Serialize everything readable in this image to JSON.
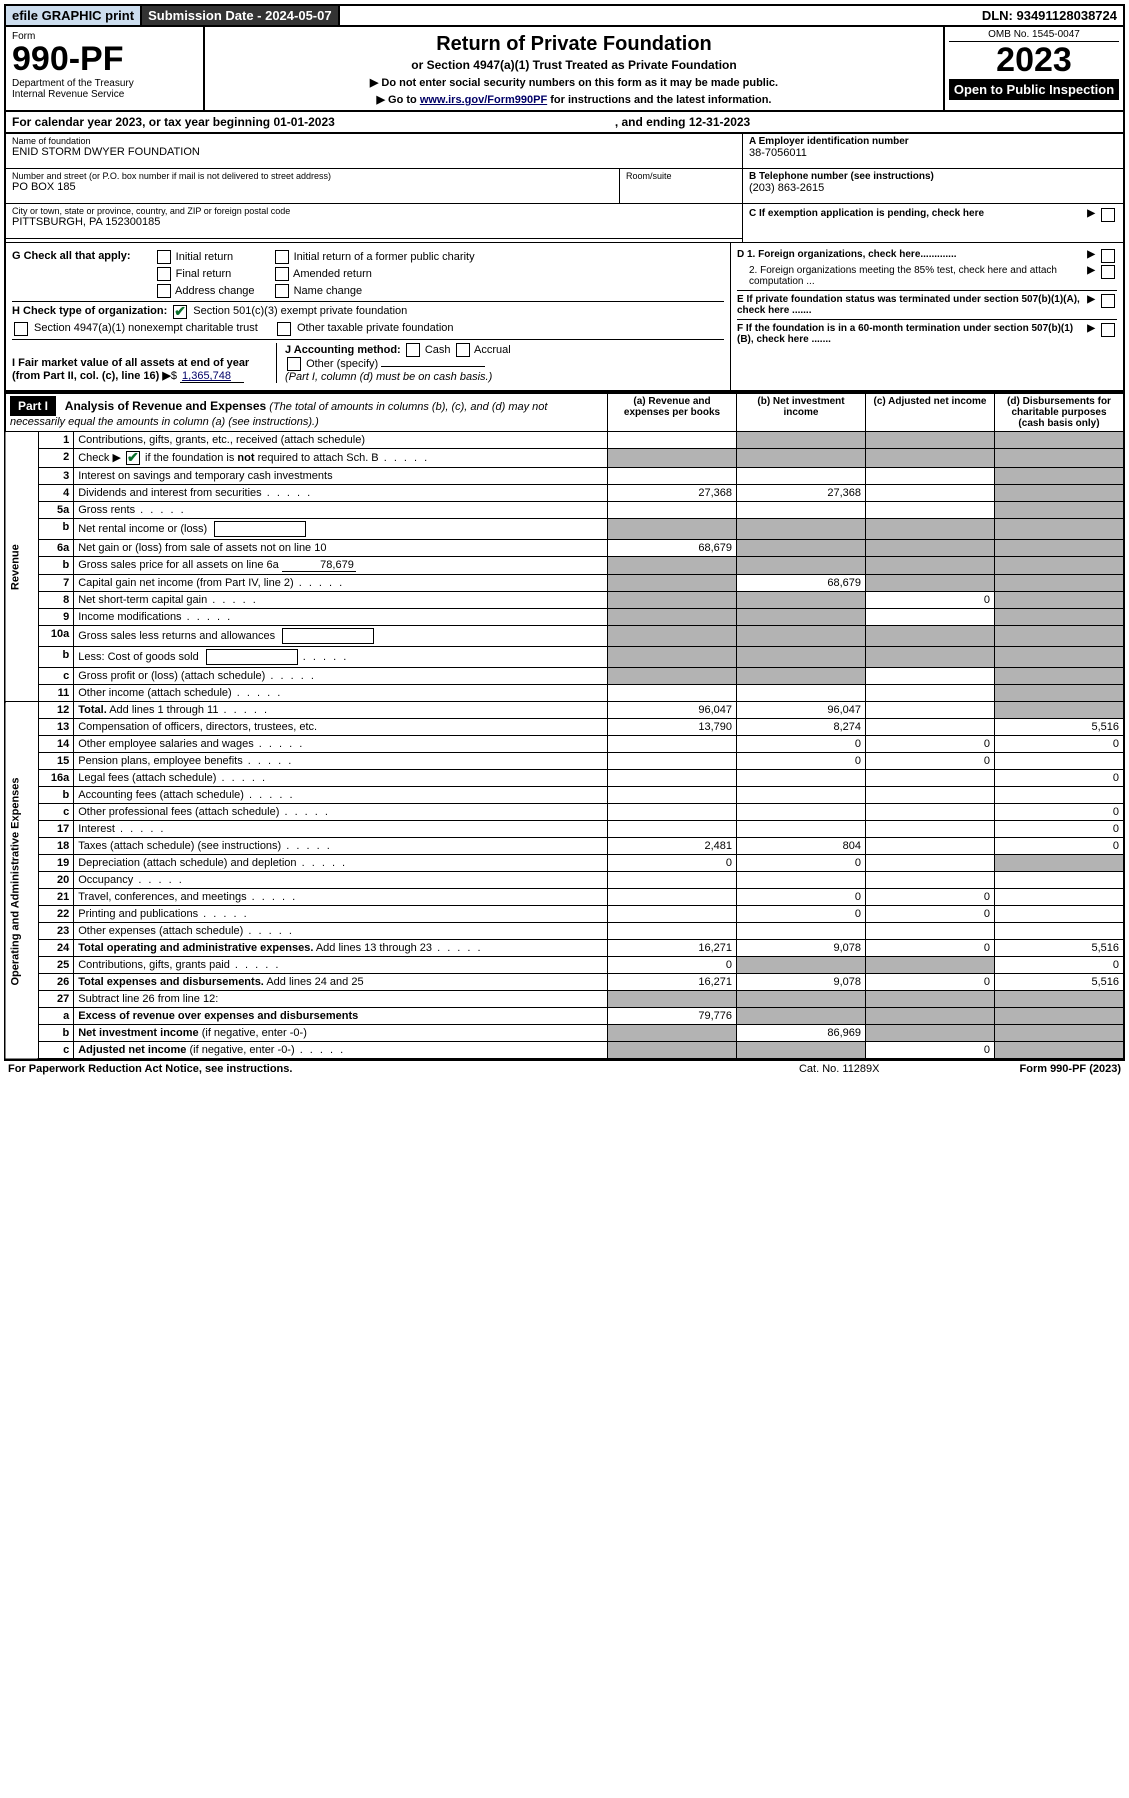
{
  "top_bar": {
    "efile": "efile GRAPHIC print",
    "submission": "Submission Date - 2024-05-07",
    "dln": "DLN: 93491128038724"
  },
  "header": {
    "form_label": "Form",
    "form_no": "990-PF",
    "dept": "Department of the Treasury\nInternal Revenue Service",
    "title": "Return of Private Foundation",
    "subtitle": "or Section 4947(a)(1) Trust Treated as Private Foundation",
    "instr1": "▶ Do not enter social security numbers on this form as it may be made public.",
    "instr2_pre": "▶ Go to ",
    "instr2_link": "www.irs.gov/Form990PF",
    "instr2_post": " for instructions and the latest information.",
    "omb": "OMB No. 1545-0047",
    "year": "2023",
    "open": "Open to Public Inspection"
  },
  "cal_year": {
    "text": "For calendar year 2023, or tax year beginning 01-01-2023",
    "ending": ", and ending 12-31-2023"
  },
  "meta": {
    "name_label": "Name of foundation",
    "name": "ENID STORM DWYER FOUNDATION",
    "addr_label": "Number and street (or P.O. box number if mail is not delivered to street address)",
    "addr": "PO BOX 185",
    "room_label": "Room/suite",
    "city_label": "City or town, state or province, country, and ZIP or foreign postal code",
    "city": "PITTSBURGH, PA  152300185",
    "ein_label": "A Employer identification number",
    "ein": "38-7056011",
    "tel_label": "B Telephone number (see instructions)",
    "tel": "(203) 863-2615",
    "c_label": "C If exemption application is pending, check here",
    "d1": "D 1. Foreign organizations, check here.............",
    "d2": "2. Foreign organizations meeting the 85% test, check here and attach computation ...",
    "e_label": "E  If private foundation status was terminated under section 507(b)(1)(A), check here .......",
    "f_label": "F  If the foundation is in a 60-month termination under section 507(b)(1)(B), check here .......",
    "g_label": "G Check all that apply:",
    "g_opts": [
      "Initial return",
      "Final return",
      "Address change",
      "Initial return of a former public charity",
      "Amended return",
      "Name change"
    ],
    "h_label": "H Check type of organization:",
    "h_opt1": "Section 501(c)(3) exempt private foundation",
    "h_opt2": "Section 4947(a)(1) nonexempt charitable trust",
    "h_opt3": "Other taxable private foundation",
    "i_label": "I Fair market value of all assets at end of year (from Part II, col. (c), line 16)",
    "i_val": "1,365,748",
    "j_label": "J Accounting method:",
    "j_opts": [
      "Cash",
      "Accrual"
    ],
    "j_other": "Other (specify)",
    "j_note": "(Part I, column (d) must be on cash basis.)"
  },
  "part1": {
    "header": "Part I",
    "title": "Analysis of Revenue and Expenses",
    "note": "(The total of amounts in columns (b), (c), and (d) may not necessarily equal the amounts in column (a) (see instructions).)",
    "cols": {
      "a": "(a)   Revenue and expenses per books",
      "b": "(b)   Net investment income",
      "c": "(c)   Adjusted net income",
      "d": "(d)   Disbursements for charitable purposes (cash basis only)"
    },
    "side_revenue": "Revenue",
    "side_expenses": "Operating and Administrative Expenses",
    "rows": [
      {
        "no": "1",
        "desc": "Contributions, gifts, grants, etc., received (attach schedule)",
        "a": "",
        "b": "shade",
        "c": "shade",
        "d": "shade"
      },
      {
        "no": "2",
        "desc": "Check ▶ ☑ if the foundation is <b>not</b> required to attach Sch. B",
        "dots": true,
        "a": "shade",
        "b": "shade",
        "c": "shade",
        "d": "shade",
        "checkbox": true
      },
      {
        "no": "3",
        "desc": "Interest on savings and temporary cash investments",
        "a": "",
        "b": "",
        "c": "",
        "d": "shade"
      },
      {
        "no": "4",
        "desc": "Dividends and interest from securities",
        "dots": true,
        "a": "27,368",
        "b": "27,368",
        "c": "",
        "d": "shade"
      },
      {
        "no": "5a",
        "desc": "Gross rents",
        "dots": true,
        "a": "",
        "b": "",
        "c": "",
        "d": "shade"
      },
      {
        "no": "b",
        "desc": "Net rental income or (loss)",
        "inlinebox": true,
        "a": "shade",
        "b": "shade",
        "c": "shade",
        "d": "shade"
      },
      {
        "no": "6a",
        "desc": "Net gain or (loss) from sale of assets not on line 10",
        "a": "68,679",
        "b": "shade",
        "c": "shade",
        "d": "shade"
      },
      {
        "no": "b",
        "desc": "Gross sales price for all assets on line 6a",
        "inlineval": "78,679",
        "a": "shade",
        "b": "shade",
        "c": "shade",
        "d": "shade"
      },
      {
        "no": "7",
        "desc": "Capital gain net income (from Part IV, line 2)",
        "dots": true,
        "a": "shade",
        "b": "68,679",
        "c": "shade",
        "d": "shade"
      },
      {
        "no": "8",
        "desc": "Net short-term capital gain",
        "dots": true,
        "a": "shade",
        "b": "shade",
        "c": "0",
        "d": "shade"
      },
      {
        "no": "9",
        "desc": "Income modifications",
        "dots": true,
        "a": "shade",
        "b": "shade",
        "c": "",
        "d": "shade"
      },
      {
        "no": "10a",
        "desc": "Gross sales less returns and allowances",
        "inlinebox": true,
        "a": "shade",
        "b": "shade",
        "c": "shade",
        "d": "shade"
      },
      {
        "no": "b",
        "desc": "Less: Cost of goods sold",
        "dots": true,
        "inlinebox": true,
        "a": "shade",
        "b": "shade",
        "c": "shade",
        "d": "shade"
      },
      {
        "no": "c",
        "desc": "Gross profit or (loss) (attach schedule)",
        "dots": true,
        "a": "shade",
        "b": "shade",
        "c": "",
        "d": "shade"
      },
      {
        "no": "11",
        "desc": "Other income (attach schedule)",
        "dots": true,
        "a": "",
        "b": "",
        "c": "",
        "d": "shade"
      },
      {
        "no": "12",
        "desc": "<b>Total.</b> Add lines 1 through 11",
        "dots": true,
        "a": "96,047",
        "b": "96,047",
        "c": "",
        "d": "shade"
      },
      {
        "no": "13",
        "desc": "Compensation of officers, directors, trustees, etc.",
        "a": "13,790",
        "b": "8,274",
        "c": "",
        "d": "5,516"
      },
      {
        "no": "14",
        "desc": "Other employee salaries and wages",
        "dots": true,
        "a": "",
        "b": "0",
        "c": "0",
        "d": "0"
      },
      {
        "no": "15",
        "desc": "Pension plans, employee benefits",
        "dots": true,
        "a": "",
        "b": "0",
        "c": "0",
        "d": ""
      },
      {
        "no": "16a",
        "desc": "Legal fees (attach schedule)",
        "dots": true,
        "a": "",
        "b": "",
        "c": "",
        "d": "0"
      },
      {
        "no": "b",
        "desc": "Accounting fees (attach schedule)",
        "dots": true,
        "a": "",
        "b": "",
        "c": "",
        "d": ""
      },
      {
        "no": "c",
        "desc": "Other professional fees (attach schedule)",
        "dots": true,
        "a": "",
        "b": "",
        "c": "",
        "d": "0"
      },
      {
        "no": "17",
        "desc": "Interest",
        "dots": true,
        "a": "",
        "b": "",
        "c": "",
        "d": "0"
      },
      {
        "no": "18",
        "desc": "Taxes (attach schedule) (see instructions)",
        "dots": true,
        "a": "2,481",
        "b": "804",
        "c": "",
        "d": "0"
      },
      {
        "no": "19",
        "desc": "Depreciation (attach schedule) and depletion",
        "dots": true,
        "a": "0",
        "b": "0",
        "c": "",
        "d": "shade"
      },
      {
        "no": "20",
        "desc": "Occupancy",
        "dots": true,
        "a": "",
        "b": "",
        "c": "",
        "d": ""
      },
      {
        "no": "21",
        "desc": "Travel, conferences, and meetings",
        "dots": true,
        "a": "",
        "b": "0",
        "c": "0",
        "d": ""
      },
      {
        "no": "22",
        "desc": "Printing and publications",
        "dots": true,
        "a": "",
        "b": "0",
        "c": "0",
        "d": ""
      },
      {
        "no": "23",
        "desc": "Other expenses (attach schedule)",
        "dots": true,
        "a": "",
        "b": "",
        "c": "",
        "d": ""
      },
      {
        "no": "24",
        "desc": "<b>Total operating and administrative expenses.</b> Add lines 13 through 23",
        "dots": true,
        "a": "16,271",
        "b": "9,078",
        "c": "0",
        "d": "5,516"
      },
      {
        "no": "25",
        "desc": "Contributions, gifts, grants paid",
        "dots": true,
        "a": "0",
        "b": "shade",
        "c": "shade",
        "d": "0"
      },
      {
        "no": "26",
        "desc": "<b>Total expenses and disbursements.</b> Add lines 24 and 25",
        "a": "16,271",
        "b": "9,078",
        "c": "0",
        "d": "5,516"
      },
      {
        "no": "27",
        "desc": "Subtract line 26 from line 12:",
        "a": "shade",
        "b": "shade",
        "c": "shade",
        "d": "shade"
      },
      {
        "no": "a",
        "desc": "<b>Excess of revenue over expenses and disbursements</b>",
        "a": "79,776",
        "b": "shade",
        "c": "shade",
        "d": "shade"
      },
      {
        "no": "b",
        "desc": "<b>Net investment income</b> (if negative, enter -0-)",
        "a": "shade",
        "b": "86,969",
        "c": "shade",
        "d": "shade"
      },
      {
        "no": "c",
        "desc": "<b>Adjusted net income</b> (if negative, enter -0-)",
        "dots": true,
        "a": "shade",
        "b": "shade",
        "c": "0",
        "d": "shade"
      }
    ]
  },
  "footer": {
    "left": "For Paperwork Reduction Act Notice, see instructions.",
    "center": "Cat. No. 11289X",
    "right": "Form 990-PF (2023)"
  }
}
